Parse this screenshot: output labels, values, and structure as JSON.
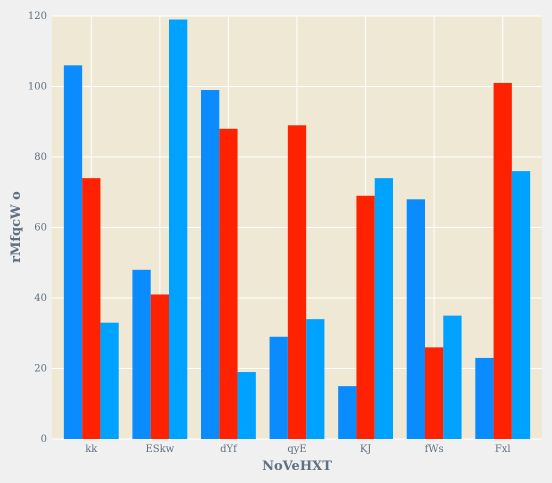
{
  "chart_data": {
    "type": "bar",
    "title": "",
    "xlabel": "NoVeHXT",
    "ylabel": "rMfqcW o",
    "categories": [
      "kk",
      "ESkw",
      "dYf",
      "qyE",
      "KJ",
      "fWs",
      "Fxl"
    ],
    "ylim": [
      0,
      120
    ],
    "yticks": [
      0,
      20,
      40,
      60,
      80,
      100,
      120
    ],
    "grid": true,
    "legend": "none",
    "series": [
      {
        "values": [
          106,
          48,
          99,
          29,
          15,
          68,
          23
        ],
        "color": "#0a8cff"
      },
      {
        "values": [
          74,
          41,
          88,
          89,
          69,
          26,
          101
        ],
        "color": "#ff2200"
      },
      {
        "values": [
          33,
          119,
          19,
          34,
          74,
          35,
          76
        ],
        "color": "#00a2ff"
      }
    ],
    "plot_background": "#efe8d5",
    "gridline_color": "#ffffff",
    "text_color": "#607080"
  }
}
